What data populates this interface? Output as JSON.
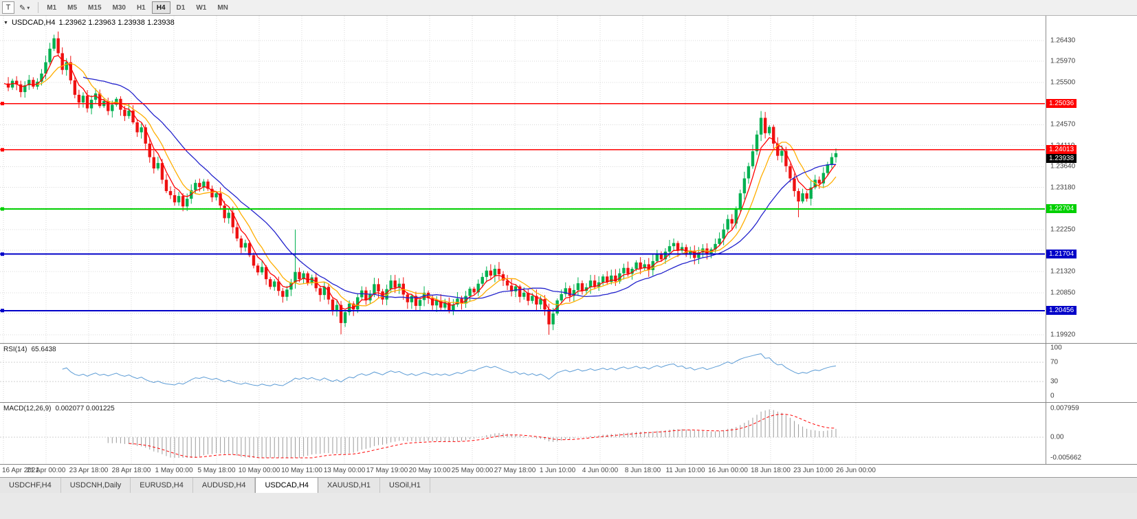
{
  "toolbar": {
    "text_tool_label": "T",
    "draw_tool_icon": "✎",
    "dropdown_arrow": "▾",
    "timeframes": [
      "M1",
      "M5",
      "M15",
      "M30",
      "H1",
      "H4",
      "D1",
      "W1",
      "MN"
    ],
    "active_timeframe": "H4"
  },
  "chart_header": {
    "collapse_icon": "▼",
    "symbol_period": "USDCAD,H4",
    "quotes": "1.23962 1.23963 1.23938 1.23938"
  },
  "chart_data": {
    "type": "candlestick",
    "symbol": "USDCAD",
    "period": "H4",
    "colors": {
      "up": "#00b050",
      "down": "#ee1111",
      "ma_fast": "#ff0000",
      "ma_mid": "#ffae00",
      "ma_slow": "#2222cc",
      "rsi_line": "#5b9bd5",
      "macd_hist": "#9b9b9b",
      "macd_signal": "#ff0000",
      "grid": "#d8d8d8"
    },
    "price_axis": {
      "grid_prices": [
        1.2643,
        1.2597,
        1.255,
        1.2504,
        1.2457,
        1.2411,
        1.2364,
        1.2318,
        1.2272,
        1.2225,
        1.2179,
        1.2132,
        1.2085,
        1.2039,
        1.1992
      ],
      "visible_labels": [
        "1.26430",
        "1.25970",
        "1.25500",
        "1.24570",
        "1.24110",
        "1.23640",
        "1.23180",
        "1.22250",
        "1.21320",
        "1.20850",
        "1.19920"
      ]
    },
    "hlines": [
      {
        "price": 1.25036,
        "label": "1.25036",
        "color": "#ff0000",
        "width": 1.4
      },
      {
        "price": 1.24013,
        "label": "1.24013",
        "color": "#ff0000",
        "width": 1.4
      },
      {
        "price": 1.22704,
        "label": "1.22704",
        "color": "#00d000",
        "width": 2
      },
      {
        "price": 1.21704,
        "label": "1.21704",
        "color": "#0000c8",
        "width": 2
      },
      {
        "price": 1.20456,
        "label": "1.20456",
        "color": "#0000c8",
        "width": 2
      }
    ],
    "current_price": {
      "value": 1.23938,
      "label": "1.23938",
      "box_color": "#000000"
    },
    "time_labels": [
      "16 Apr 2021",
      "21 Apr 00:00",
      "23 Apr 18:00",
      "28 Apr 18:00",
      "1 May 00:00",
      "5 May 18:00",
      "10 May 00:00",
      "10 May 11:00",
      "13 May 00:00",
      "17 May 19:00",
      "20 May 10:00",
      "25 May 00:00",
      "27 May 18:00",
      "1 Jun 10:00",
      "4 Jun 00:00",
      "8 Jun 18:00",
      "11 Jun 10:00",
      "16 Jun 00:00",
      "18 Jun 18:00",
      "23 Jun 10:00",
      "26 Jun 00:00"
    ],
    "closes": [
      1.2548,
      1.2539,
      1.2554,
      1.2546,
      1.2529,
      1.2544,
      1.2556,
      1.2541,
      1.2552,
      1.257,
      1.2595,
      1.2625,
      1.2648,
      1.2615,
      1.2578,
      1.2595,
      1.2555,
      1.2523,
      1.2506,
      1.2521,
      1.2493,
      1.2512,
      1.2526,
      1.2498,
      1.2509,
      1.2487,
      1.2501,
      1.2514,
      1.249,
      1.2476,
      1.2488,
      1.2462,
      1.244,
      1.2451,
      1.2415,
      1.2385,
      1.236,
      1.2372,
      1.2335,
      1.231,
      1.2301,
      1.2285,
      1.2299,
      1.2276,
      1.2293,
      1.2312,
      1.2328,
      1.2319,
      1.2331,
      1.2315,
      1.2296,
      1.2305,
      1.2278,
      1.225,
      1.2262,
      1.223,
      1.2205,
      1.2185,
      1.2195,
      1.2168,
      1.2145,
      1.213,
      1.2142,
      1.2115,
      1.2098,
      1.211,
      1.2089,
      1.2076,
      1.2092,
      1.2108,
      1.2131,
      1.2115,
      1.2128,
      1.2106,
      1.2119,
      1.2095,
      1.208,
      1.2098,
      1.207,
      1.2045,
      1.2058,
      1.2018,
      1.2042,
      1.2061,
      1.2048,
      1.2075,
      1.209,
      1.2068,
      1.2082,
      1.2104,
      1.2088,
      1.207,
      1.2093,
      1.2112,
      1.2096,
      1.2105,
      1.2081,
      1.2064,
      1.2078,
      1.2056,
      1.2069,
      1.2085,
      1.2073,
      1.2057,
      1.2068,
      1.2052,
      1.2064,
      1.2046,
      1.2059,
      1.2072,
      1.2061,
      1.2078,
      1.2094,
      1.2086,
      1.2105,
      1.212,
      1.2134,
      1.2123,
      1.2138,
      1.2126,
      1.2112,
      1.2101,
      1.2088,
      1.2099,
      1.2076,
      1.2085,
      1.2067,
      1.2078,
      1.2059,
      1.2071,
      1.2048,
      1.2015,
      1.2039,
      1.2068,
      1.2082,
      1.2095,
      1.2078,
      1.2091,
      1.2106,
      1.2089,
      1.2097,
      1.2112,
      1.2098,
      1.2108,
      1.2121,
      1.2109,
      1.2123,
      1.211,
      1.2128,
      1.214,
      1.2127,
      1.2138,
      1.2152,
      1.2139,
      1.2148,
      1.2135,
      1.2155,
      1.217,
      1.2159,
      1.2176,
      1.2188,
      1.2195,
      1.2178,
      1.2186,
      1.2169,
      1.2178,
      1.2162,
      1.2174,
      1.2183,
      1.217,
      1.2181,
      1.2193,
      1.2205,
      1.2225,
      1.2248,
      1.2238,
      1.227,
      1.2305,
      1.2338,
      1.2365,
      1.2398,
      1.2435,
      1.2472,
      1.2438,
      1.2452,
      1.2415,
      1.2388,
      1.2399,
      1.2365,
      1.2338,
      1.231,
      1.2287,
      1.2305,
      1.2293,
      1.2318,
      1.2335,
      1.2327,
      1.235,
      1.2369,
      1.2385,
      1.23938
    ],
    "wick_overrides": {
      "12": {
        "h": 1.2656
      },
      "70": {
        "h": 1.2225
      },
      "81": {
        "l": 1.1993
      },
      "131": {
        "l": 1.1992
      },
      "182": {
        "h": 1.2487
      },
      "191": {
        "l": 1.2252
      }
    },
    "rsi": {
      "label": "RSI(14)",
      "value": "65.6438",
      "period": 14,
      "scale": [
        100,
        70,
        30,
        0
      ]
    },
    "macd": {
      "label": "MACD(12,26,9)",
      "values": "0.002077 0.001225",
      "fast": 12,
      "slow": 26,
      "signal": 9,
      "scale_top": 0.007959,
      "scale_top_text": "0.007959",
      "scale_zero_text": "0.00",
      "scale_bottom": -0.005662,
      "scale_bottom_text": "-0.005662"
    }
  },
  "tabs": {
    "items": [
      "USDCHF,H4",
      "USDCNH,Daily",
      "EURUSD,H4",
      "AUDUSD,H4",
      "USDCAD,H4",
      "XAUUSD,H1",
      "USOil,H1"
    ],
    "active": "USDCAD,H4"
  }
}
